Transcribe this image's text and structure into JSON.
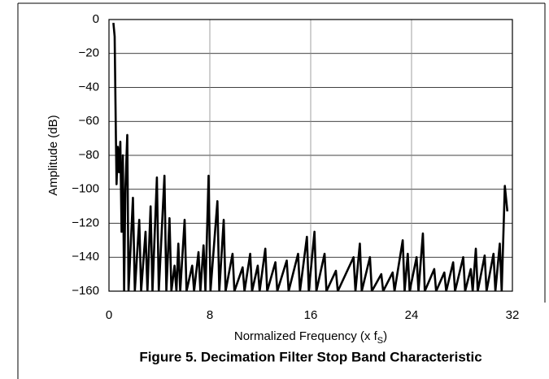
{
  "chart_data": {
    "type": "line",
    "title": "Figure 5. Decimation Filter Stop Band Characteristic",
    "xlabel": [
      "Normalized Frequency (x f",
      "S",
      ")"
    ],
    "ylabel": "Amplitude (dB)",
    "xlim": [
      0,
      32
    ],
    "xticks": [
      0,
      8,
      16,
      24,
      32
    ],
    "ylim": [
      -160,
      0
    ],
    "yticks": [
      0,
      {
        "value": -20,
        "label": "−20"
      },
      {
        "value": -40,
        "label": "−40"
      },
      {
        "value": -60,
        "label": "−60"
      },
      {
        "value": -80,
        "label": "−80"
      },
      {
        "value": -100,
        "label": "−100"
      },
      {
        "value": -120,
        "label": "−120"
      },
      {
        "value": -140,
        "label": "−140"
      },
      {
        "value": -160,
        "label": "−160"
      }
    ],
    "grid": true,
    "series": [
      {
        "color": "#000000",
        "x": [
          0.35,
          0.45,
          0.55,
          0.6,
          0.7,
          0.8,
          0.9,
          1.0,
          1.1,
          1.2,
          1.3,
          1.45,
          1.55,
          1.9,
          2.05,
          2.4,
          2.55,
          2.9,
          3.05,
          3.3,
          3.45,
          3.8,
          3.95,
          4.4,
          4.55,
          4.8,
          4.95,
          5.2,
          5.35,
          5.5,
          5.65,
          6.0,
          6.15,
          6.6,
          6.75,
          7.1,
          7.25,
          7.5,
          7.65,
          7.9,
          8.05,
          8.6,
          8.75,
          9.1,
          9.25,
          9.8,
          9.95,
          10.6,
          10.75,
          11.2,
          11.35,
          11.8,
          11.95,
          12.4,
          12.55,
          13.2,
          13.35,
          14.1,
          14.25,
          15.0,
          15.15,
          15.7,
          15.85,
          16.3,
          16.45,
          17.1,
          17.25,
          18.0,
          18.15,
          19.4,
          19.55,
          19.9,
          20.05,
          20.7,
          20.85,
          21.6,
          21.75,
          22.5,
          22.65,
          23.3,
          23.45,
          23.7,
          23.85,
          24.4,
          24.55,
          24.9,
          25.05,
          25.8,
          25.95,
          26.6,
          26.75,
          27.3,
          27.45,
          28.1,
          28.25,
          28.7,
          28.85,
          29.1,
          29.25,
          29.8,
          29.95,
          30.5,
          30.65,
          31.0,
          31.15,
          31.4,
          31.6
        ],
        "values": [
          -2,
          -10,
          -70,
          -97,
          -75,
          -90,
          -72,
          -125,
          -80,
          -160,
          -100,
          -68,
          -160,
          -105,
          -160,
          -118,
          -160,
          -125,
          -160,
          -110,
          -160,
          -93,
          -160,
          -92,
          -160,
          -117,
          -160,
          -145,
          -160,
          -132,
          -160,
          -118,
          -160,
          -145,
          -160,
          -137,
          -160,
          -133,
          -160,
          -92,
          -160,
          -107,
          -160,
          -118,
          -160,
          -138,
          -160,
          -146,
          -160,
          -138,
          -160,
          -145,
          -160,
          -135,
          -160,
          -143,
          -160,
          -142,
          -160,
          -138,
          -160,
          -128,
          -160,
          -125,
          -160,
          -138,
          -160,
          -148,
          -160,
          -140,
          -160,
          -132,
          -160,
          -140,
          -160,
          -150,
          -160,
          -149,
          -160,
          -130,
          -160,
          -138,
          -160,
          -140,
          -160,
          -126,
          -160,
          -147,
          -160,
          -149,
          -160,
          -143,
          -160,
          -140,
          -160,
          -147,
          -160,
          -135,
          -160,
          -139,
          -160,
          -138,
          -160,
          -132,
          -160,
          -98,
          -113
        ]
      }
    ]
  }
}
